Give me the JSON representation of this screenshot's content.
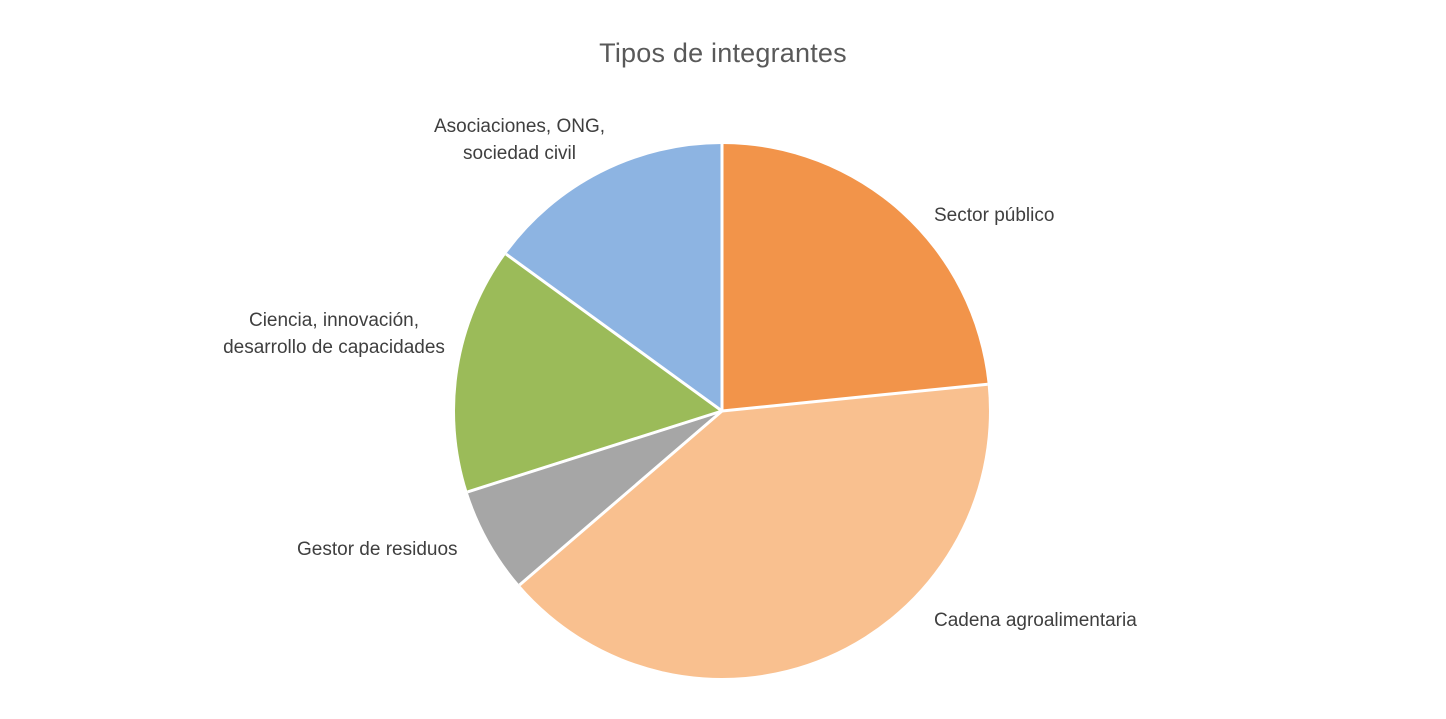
{
  "page": {
    "background_color": "#ffffff"
  },
  "chart_data": {
    "type": "pie",
    "title": "Tipos de integrantes",
    "start_angle_deg": 0,
    "direction": "clockwise",
    "legend_position": "none",
    "labels_position": "outside",
    "grid": false,
    "title_color": "#595959",
    "label_color": "#3f3f3f",
    "separator_color": "#ffffff",
    "slices": [
      {
        "label": "Sector público",
        "value_pct": 23.4,
        "color": "#F2944A"
      },
      {
        "label": "Cadena agroalimentaria",
        "value_pct": 40.3,
        "color": "#F9C08F"
      },
      {
        "label": "Gestor de residuos",
        "value_pct": 6.4,
        "color": "#A6A6A6"
      },
      {
        "label": "Ciencia, innovación, desarrollo de capacidades",
        "value_pct": 14.9,
        "color": "#9BBB59"
      },
      {
        "label": "Asociaciones, ONG, sociedad civil",
        "value_pct": 15.0,
        "color": "#8DB4E2"
      }
    ]
  }
}
